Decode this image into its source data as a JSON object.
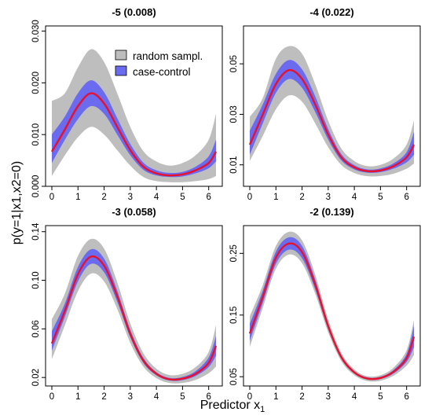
{
  "figure": {
    "xlabel_main": "Predictor x",
    "xlabel_sub": "1",
    "ylabel": "p(y=1|x1,x2=0)"
  },
  "legend": {
    "entries": [
      {
        "label": "random sampl.",
        "color": "#bebebe"
      },
      {
        "label": "case-control",
        "color": "#6b6bef"
      }
    ]
  },
  "colors": {
    "random_band": "#bebebe",
    "case_control_band": "#6b6bef",
    "mean_line": "#e8102a"
  },
  "chart_data": [
    {
      "type": "area",
      "title": "-5 (0.008)",
      "xlim": [
        0,
        6.28
      ],
      "ylim": [
        0,
        0.031
      ],
      "xticks": [
        0,
        1,
        2,
        3,
        4,
        5,
        6
      ],
      "yticks": [
        0.0,
        0.01,
        0.02,
        0.03
      ],
      "ytick_labels": [
        "0.000",
        "0.010",
        "0.020",
        "0.030"
      ],
      "x": [
        0,
        0.5,
        1.0,
        1.5,
        2.0,
        2.5,
        3.0,
        3.5,
        4.0,
        4.5,
        5.0,
        5.5,
        6.0,
        6.28
      ],
      "mean": [
        0.0067,
        0.011,
        0.0155,
        0.018,
        0.016,
        0.0115,
        0.007,
        0.0038,
        0.0025,
        0.0021,
        0.0023,
        0.0031,
        0.0045,
        0.0067
      ],
      "case_control_lower": [
        0.0045,
        0.009,
        0.013,
        0.0155,
        0.014,
        0.01,
        0.006,
        0.0032,
        0.0021,
        0.0018,
        0.0019,
        0.0025,
        0.0035,
        0.0048
      ],
      "case_control_upper": [
        0.01,
        0.0135,
        0.018,
        0.0205,
        0.0182,
        0.0132,
        0.0082,
        0.0046,
        0.0031,
        0.0026,
        0.0028,
        0.0038,
        0.0058,
        0.009
      ],
      "random_lower": [
        0.002,
        0.006,
        0.0095,
        0.0115,
        0.01,
        0.007,
        0.004,
        0.0018,
        0.001,
        0.0008,
        0.0008,
        0.001,
        0.0014,
        0.002
      ],
      "random_upper": [
        0.0165,
        0.018,
        0.023,
        0.0265,
        0.024,
        0.018,
        0.0115,
        0.0068,
        0.0048,
        0.004,
        0.0045,
        0.006,
        0.009,
        0.014
      ]
    },
    {
      "type": "area",
      "title": "-4 (0.022)",
      "xlim": [
        0,
        6.28
      ],
      "ylim": [
        0.0015,
        0.065
      ],
      "xticks": [
        0,
        1,
        2,
        3,
        4,
        5,
        6
      ],
      "yticks": [
        0.01,
        0.03,
        0.05
      ],
      "ytick_labels": [
        "0.01",
        "0.03",
        "0.05"
      ],
      "x": [
        0,
        0.5,
        1.0,
        1.5,
        2.0,
        2.5,
        3.0,
        3.5,
        4.0,
        4.5,
        5.0,
        5.5,
        6.0,
        6.28
      ],
      "mean": [
        0.018,
        0.03,
        0.042,
        0.0475,
        0.044,
        0.034,
        0.022,
        0.013,
        0.009,
        0.0075,
        0.0078,
        0.0095,
        0.013,
        0.018
      ],
      "case_control_lower": [
        0.014,
        0.0265,
        0.0385,
        0.044,
        0.0405,
        0.031,
        0.02,
        0.0118,
        0.0082,
        0.0069,
        0.0071,
        0.0085,
        0.011,
        0.014
      ],
      "case_control_upper": [
        0.0235,
        0.034,
        0.046,
        0.0515,
        0.0478,
        0.0372,
        0.0242,
        0.0143,
        0.0099,
        0.0082,
        0.0086,
        0.0106,
        0.015,
        0.023
      ],
      "random_lower": [
        0.0115,
        0.0215,
        0.032,
        0.0375,
        0.035,
        0.0265,
        0.017,
        0.01,
        0.0068,
        0.0055,
        0.0056,
        0.0065,
        0.0085,
        0.0105
      ],
      "random_upper": [
        0.029,
        0.0365,
        0.052,
        0.057,
        0.054,
        0.042,
        0.0275,
        0.0165,
        0.0115,
        0.0095,
        0.01,
        0.0125,
        0.018,
        0.0275
      ]
    },
    {
      "type": "area",
      "title": "-3 (0.058)",
      "xlim": [
        0,
        6.28
      ],
      "ylim": [
        0.013,
        0.145
      ],
      "xticks": [
        0,
        1,
        2,
        3,
        4,
        5,
        6
      ],
      "yticks": [
        0.02,
        0.06,
        0.1,
        0.14
      ],
      "ytick_labels": [
        "0.02",
        "0.06",
        "0.10",
        "0.14"
      ],
      "x": [
        0,
        0.5,
        1.0,
        1.5,
        2.0,
        2.5,
        3.0,
        3.5,
        4.0,
        4.5,
        5.0,
        5.5,
        6.0,
        6.28
      ],
      "mean": [
        0.048,
        0.075,
        0.105,
        0.1195,
        0.112,
        0.087,
        0.056,
        0.034,
        0.023,
        0.0185,
        0.019,
        0.023,
        0.032,
        0.046
      ],
      "case_control_lower": [
        0.042,
        0.07,
        0.099,
        0.1135,
        0.1065,
        0.0825,
        0.053,
        0.032,
        0.0218,
        0.0175,
        0.0178,
        0.0212,
        0.0285,
        0.038
      ],
      "case_control_upper": [
        0.058,
        0.081,
        0.111,
        0.1255,
        0.1178,
        0.0915,
        0.0592,
        0.0362,
        0.0244,
        0.0196,
        0.0204,
        0.0252,
        0.0365,
        0.054
      ],
      "random_lower": [
        0.035,
        0.063,
        0.091,
        0.1055,
        0.099,
        0.0765,
        0.0485,
        0.029,
        0.0195,
        0.0155,
        0.0155,
        0.018,
        0.0235,
        0.029
      ],
      "random_upper": [
        0.068,
        0.089,
        0.12,
        0.134,
        0.126,
        0.0985,
        0.0645,
        0.04,
        0.0272,
        0.022,
        0.023,
        0.0285,
        0.041,
        0.063
      ]
    },
    {
      "type": "area",
      "title": "-2 (0.139)",
      "xlim": [
        0,
        6.28
      ],
      "ylim": [
        0.035,
        0.295
      ],
      "xticks": [
        0,
        1,
        2,
        3,
        4,
        5,
        6
      ],
      "yticks": [
        0.05,
        0.15,
        0.25
      ],
      "ytick_labels": [
        "0.05",
        "0.15",
        "0.25"
      ],
      "x": [
        0,
        0.5,
        1.0,
        1.5,
        2.0,
        2.5,
        3.0,
        3.5,
        4.0,
        4.5,
        5.0,
        5.5,
        6.0,
        6.28
      ],
      "mean": [
        0.12,
        0.18,
        0.243,
        0.266,
        0.252,
        0.2,
        0.132,
        0.082,
        0.057,
        0.047,
        0.048,
        0.058,
        0.08,
        0.115
      ],
      "case_control_lower": [
        0.108,
        0.17,
        0.233,
        0.256,
        0.242,
        0.192,
        0.127,
        0.079,
        0.055,
        0.0455,
        0.0462,
        0.0552,
        0.074,
        0.098
      ],
      "case_control_upper": [
        0.136,
        0.19,
        0.253,
        0.276,
        0.262,
        0.208,
        0.137,
        0.085,
        0.0592,
        0.0488,
        0.05,
        0.061,
        0.087,
        0.133
      ],
      "random_lower": [
        0.098,
        0.162,
        0.225,
        0.248,
        0.234,
        0.185,
        0.122,
        0.0755,
        0.0525,
        0.043,
        0.0435,
        0.0515,
        0.068,
        0.085
      ],
      "random_upper": [
        0.148,
        0.199,
        0.262,
        0.285,
        0.271,
        0.216,
        0.143,
        0.089,
        0.062,
        0.051,
        0.0525,
        0.065,
        0.093,
        0.142
      ]
    }
  ]
}
